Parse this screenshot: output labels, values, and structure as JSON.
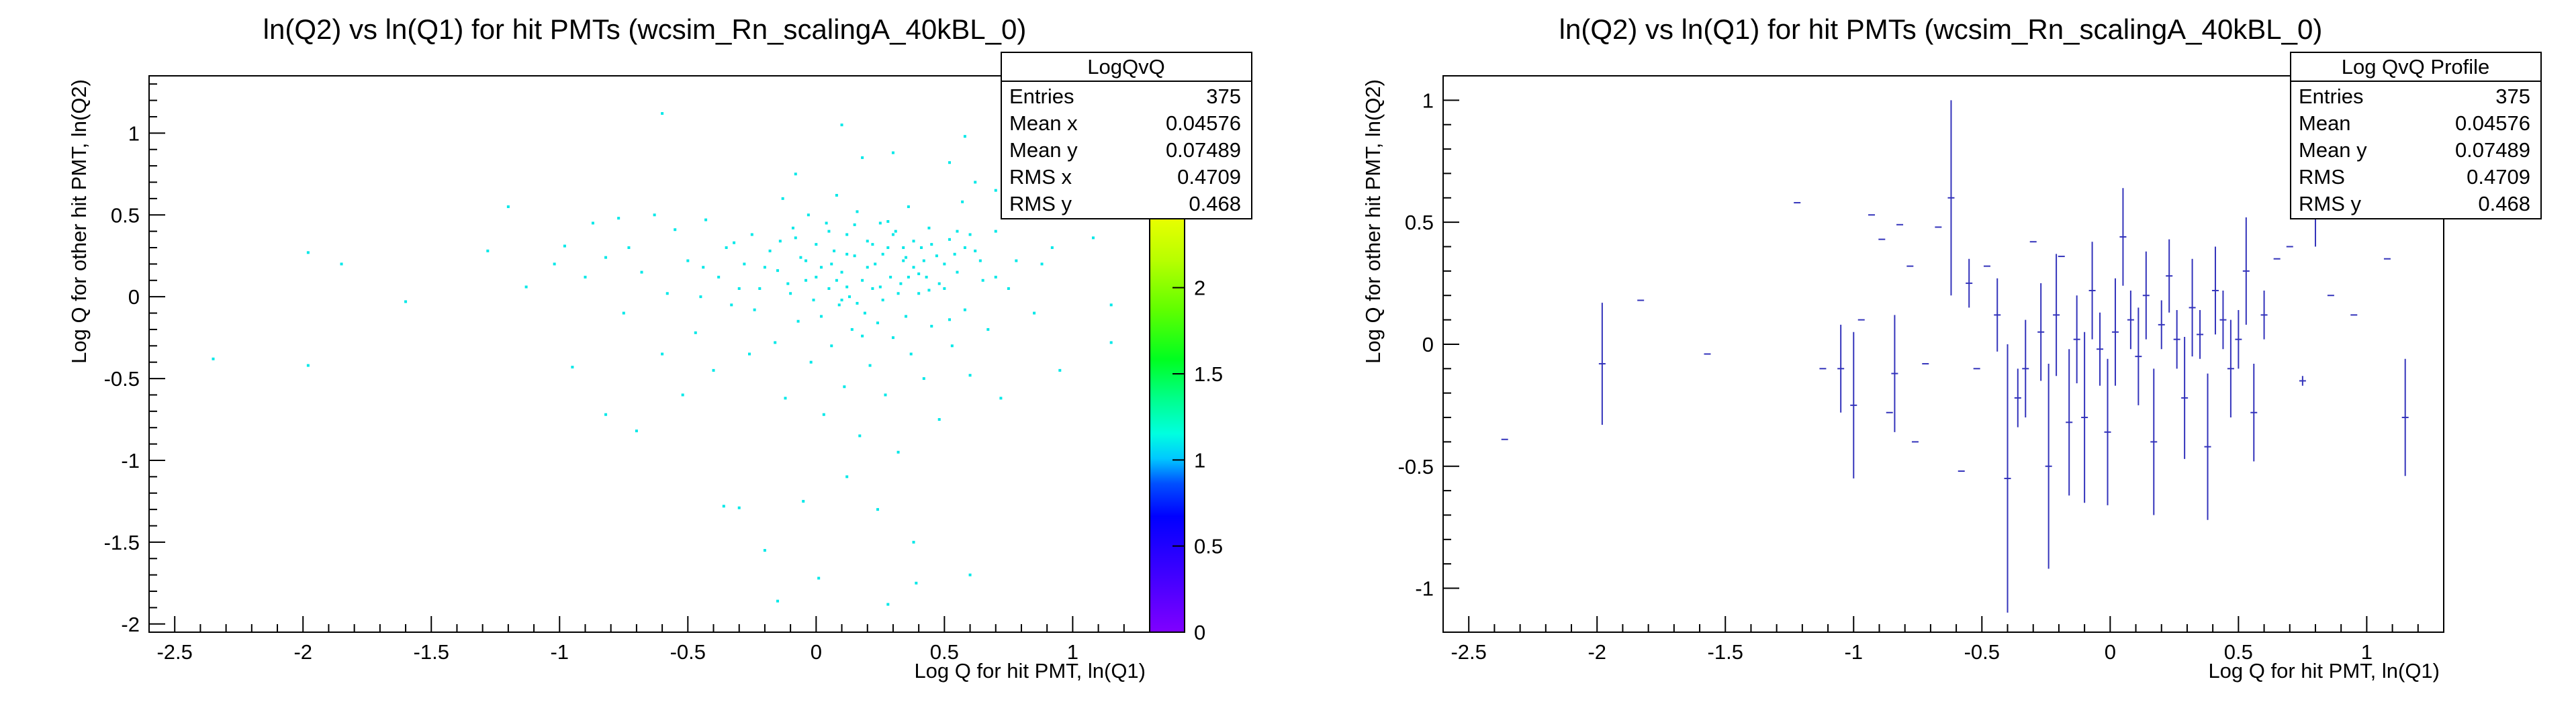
{
  "colors": {
    "scatter_point": "#00e8e8",
    "profile": "#3333bb"
  },
  "chart_data": [
    {
      "type": "scatter",
      "title": "ln(Q2) vs ln(Q1) for hit PMTs (wcsim_Rn_scalingA_40kBL_0)",
      "xlabel": "Log Q for hit PMT, ln(Q1)",
      "ylabel": "Log Q for other hit PMT, ln(Q2)",
      "xlim": [
        -2.6,
        1.3
      ],
      "ylim": [
        -2.05,
        1.35
      ],
      "xticks": [
        "-2.5",
        "-2",
        "-1.5",
        "-1",
        "-0.5",
        "0",
        "0.5",
        "1"
      ],
      "yticks": [
        "-2",
        "-1.5",
        "-1",
        "-0.5",
        "0",
        "0.5",
        "1"
      ],
      "zlim": [
        0,
        2.4
      ],
      "zticks": [
        "0",
        "0.5",
        "1",
        "1.5",
        "2"
      ],
      "stats": {
        "title": "LogQvQ",
        "rows": [
          {
            "label": "Entries",
            "value": "375"
          },
          {
            "label": "Mean x",
            "value": "0.04576"
          },
          {
            "label": "Mean y",
            "value": "0.07489"
          },
          {
            "label": "RMS x",
            "value": "0.4709"
          },
          {
            "label": "RMS y",
            "value": "0.468"
          }
        ]
      },
      "points": [
        [
          -2.35,
          -0.38
        ],
        [
          -1.98,
          0.27
        ],
        [
          -1.98,
          -0.42
        ],
        [
          -1.85,
          0.2
        ],
        [
          -1.6,
          -0.03
        ],
        [
          -1.28,
          0.28
        ],
        [
          -1.2,
          0.55
        ],
        [
          -1.13,
          0.06
        ],
        [
          -1.02,
          0.2
        ],
        [
          -0.98,
          0.31
        ],
        [
          -0.95,
          -0.43
        ],
        [
          -0.9,
          0.12
        ],
        [
          -0.87,
          0.45
        ],
        [
          -0.82,
          0.24
        ],
        [
          -0.82,
          -0.72
        ],
        [
          -0.77,
          0.48
        ],
        [
          -0.75,
          -0.1
        ],
        [
          -0.73,
          0.3
        ],
        [
          -0.7,
          -0.82
        ],
        [
          -0.68,
          0.15
        ],
        [
          -0.63,
          0.5
        ],
        [
          -0.6,
          -0.35
        ],
        [
          -0.58,
          0.02
        ],
        [
          -0.55,
          0.41
        ],
        [
          -0.52,
          -0.6
        ],
        [
          -0.5,
          0.22
        ],
        [
          -0.47,
          -0.22
        ],
        [
          -0.45,
          0.0
        ],
        [
          -0.43,
          0.47
        ],
        [
          -0.4,
          -0.45
        ],
        [
          -0.38,
          0.12
        ],
        [
          -0.36,
          -1.28
        ],
        [
          -0.33,
          -0.05
        ],
        [
          -0.32,
          0.33
        ],
        [
          -0.3,
          -1.29
        ],
        [
          -0.28,
          0.2
        ],
        [
          -0.25,
          0.38
        ],
        [
          -0.24,
          -0.08
        ],
        [
          -0.22,
          0.05
        ],
        [
          -0.2,
          -1.55
        ],
        [
          -0.18,
          0.28
        ],
        [
          -0.16,
          -0.28
        ],
        [
          -0.15,
          0.16
        ],
        [
          -0.13,
          0.6
        ],
        [
          -0.12,
          -0.62
        ],
        [
          -0.1,
          0.02
        ],
        [
          -0.09,
          0.42
        ],
        [
          -0.07,
          -0.15
        ],
        [
          -0.06,
          0.24
        ],
        [
          -0.05,
          -1.25
        ],
        [
          -0.04,
          0.1
        ],
        [
          -0.03,
          0.5
        ],
        [
          -0.02,
          -0.4
        ],
        [
          -0.01,
          -0.02
        ],
        [
          0.0,
          0.32
        ],
        [
          0.01,
          -1.72
        ],
        [
          0.02,
          0.18
        ],
        [
          0.03,
          -0.72
        ],
        [
          0.04,
          0.45
        ],
        [
          0.05,
          0.05
        ],
        [
          0.06,
          -0.3
        ],
        [
          0.07,
          0.28
        ],
        [
          0.08,
          0.62
        ],
        [
          0.09,
          -0.05
        ],
        [
          0.1,
          0.15
        ],
        [
          0.11,
          -0.55
        ],
        [
          0.12,
          0.38
        ],
        [
          0.13,
          0.0
        ],
        [
          0.14,
          -0.2
        ],
        [
          0.15,
          0.25
        ],
        [
          0.16,
          0.52
        ],
        [
          0.17,
          -0.85
        ],
        [
          0.18,
          0.1
        ],
        [
          0.19,
          -0.1
        ],
        [
          0.2,
          0.34
        ],
        [
          0.21,
          -0.42
        ],
        [
          0.22,
          0.05
        ],
        [
          0.23,
          0.2
        ],
        [
          0.24,
          -1.3
        ],
        [
          0.25,
          0.45
        ],
        [
          0.26,
          -0.02
        ],
        [
          0.27,
          -0.6
        ],
        [
          0.28,
          0.3
        ],
        [
          0.29,
          0.12
        ],
        [
          0.3,
          -0.25
        ],
        [
          0.31,
          0.4
        ],
        [
          0.32,
          -0.95
        ],
        [
          0.33,
          0.08
        ],
        [
          0.34,
          0.22
        ],
        [
          0.35,
          -0.12
        ],
        [
          0.36,
          0.55
        ],
        [
          0.37,
          -0.35
        ],
        [
          0.38,
          0.18
        ],
        [
          0.39,
          -1.75
        ],
        [
          0.4,
          0.02
        ],
        [
          0.41,
          0.3
        ],
        [
          0.42,
          -0.5
        ],
        [
          0.43,
          0.12
        ],
        [
          0.44,
          0.42
        ],
        [
          0.45,
          -0.18
        ],
        [
          0.47,
          0.25
        ],
        [
          0.48,
          -0.75
        ],
        [
          0.5,
          0.05
        ],
        [
          0.52,
          0.35
        ],
        [
          0.53,
          -0.3
        ],
        [
          0.55,
          0.15
        ],
        [
          0.57,
          0.58
        ],
        [
          0.58,
          -0.08
        ],
        [
          0.6,
          -0.48
        ],
        [
          0.62,
          0.28
        ],
        [
          0.65,
          0.1
        ],
        [
          0.67,
          -0.2
        ],
        [
          0.7,
          0.4
        ],
        [
          0.72,
          -0.62
        ],
        [
          0.75,
          0.05
        ],
        [
          0.78,
          0.22
        ],
        [
          0.82,
          0.48
        ],
        [
          0.85,
          -0.1
        ],
        [
          0.88,
          0.2
        ],
        [
          0.92,
          0.3
        ],
        [
          0.95,
          -0.45
        ],
        [
          1.0,
          0.55
        ],
        [
          1.08,
          0.36
        ],
        [
          1.15,
          -0.05
        ],
        [
          1.15,
          -0.28
        ],
        [
          -0.14,
          0.34
        ],
        [
          -0.11,
          0.08
        ],
        [
          -0.08,
          0.36
        ],
        [
          0.0,
          0.12
        ],
        [
          0.05,
          0.4
        ],
        [
          0.1,
          -0.02
        ],
        [
          0.15,
          0.44
        ],
        [
          0.2,
          0.18
        ],
        [
          0.25,
          0.06
        ],
        [
          0.3,
          0.38
        ],
        [
          0.35,
          0.24
        ],
        [
          0.4,
          0.14
        ],
        [
          0.45,
          0.32
        ],
        [
          0.5,
          0.2
        ],
        [
          0.55,
          0.4
        ],
        [
          0.12,
          0.26
        ],
        [
          0.22,
          0.32
        ],
        [
          0.32,
          0.02
        ],
        [
          0.42,
          0.22
        ],
        [
          0.52,
          -0.14
        ],
        [
          0.6,
          0.38
        ],
        [
          0.18,
          -0.24
        ],
        [
          0.28,
          0.46
        ],
        [
          0.38,
          0.34
        ],
        [
          0.08,
          0.1
        ],
        [
          -0.2,
          0.18
        ],
        [
          -0.3,
          0.05
        ],
        [
          -0.26,
          -0.35
        ],
        [
          0.64,
          0.22
        ],
        [
          0.7,
          0.12
        ],
        [
          0.58,
          0.3
        ],
        [
          0.48,
          0.08
        ],
        [
          0.36,
          0.12
        ],
        [
          0.26,
          0.26
        ],
        [
          0.16,
          -0.04
        ],
        [
          0.06,
          0.2
        ],
        [
          -0.04,
          0.22
        ],
        [
          0.02,
          -0.12
        ],
        [
          0.12,
          0.06
        ],
        [
          0.24,
          -0.16
        ],
        [
          0.34,
          0.3
        ],
        [
          0.44,
          0.04
        ],
        [
          0.54,
          0.26
        ],
        [
          -0.35,
          0.3
        ],
        [
          -0.44,
          0.18
        ],
        [
          0.28,
          -1.88
        ],
        [
          -0.15,
          -1.86
        ],
        [
          0.6,
          -1.7
        ],
        [
          0.38,
          -1.5
        ],
        [
          0.12,
          -1.1
        ],
        [
          0.52,
          0.82
        ],
        [
          0.58,
          0.98
        ],
        [
          -0.08,
          0.75
        ],
        [
          0.3,
          0.88
        ],
        [
          0.88,
          0.78
        ],
        [
          -0.6,
          1.12
        ],
        [
          0.1,
          1.05
        ],
        [
          0.18,
          0.85
        ],
        [
          0.62,
          0.7
        ],
        [
          0.7,
          0.65
        ]
      ]
    },
    {
      "type": "scatter",
      "title": "ln(Q2) vs ln(Q1) for hit PMTs (wcsim_Rn_scalingA_40kBL_0)",
      "xlabel": "Log Q for hit PMT, ln(Q1)",
      "ylabel": "Log Q for other hit PMT, ln(Q2)",
      "xlim": [
        -2.6,
        1.3
      ],
      "ylim": [
        -1.18,
        1.1
      ],
      "xticks": [
        "-2.5",
        "-2",
        "-1.5",
        "-1",
        "-0.5",
        "0",
        "0.5",
        "1"
      ],
      "yticks": [
        "-1",
        "-0.5",
        "0",
        "0.5",
        "1"
      ],
      "stats": {
        "title": "Log QvQ Profile",
        "rows": [
          {
            "label": "Entries",
            "value": "375"
          },
          {
            "label": "Mean",
            "value": "0.04576"
          },
          {
            "label": "Mean y",
            "value": "0.07489"
          },
          {
            "label": "RMS",
            "value": "0.4709"
          },
          {
            "label": "RMS y",
            "value": "0.468"
          }
        ]
      },
      "profile": [
        {
          "x": -2.36,
          "y": -0.39,
          "err": 0
        },
        {
          "x": -1.98,
          "y": -0.08,
          "err": 0.25
        },
        {
          "x": -1.83,
          "y": 0.18,
          "err": 0
        },
        {
          "x": -1.57,
          "y": -0.04,
          "err": 0
        },
        {
          "x": -1.22,
          "y": 0.58,
          "err": 0
        },
        {
          "x": -1.12,
          "y": -0.1,
          "err": 0
        },
        {
          "x": -1.05,
          "y": -0.1,
          "err": 0.18
        },
        {
          "x": -1.0,
          "y": -0.25,
          "err": 0.3
        },
        {
          "x": -0.97,
          "y": 0.1,
          "err": 0
        },
        {
          "x": -0.93,
          "y": 0.53,
          "err": 0
        },
        {
          "x": -0.89,
          "y": 0.43,
          "err": 0
        },
        {
          "x": -0.86,
          "y": -0.28,
          "err": 0
        },
        {
          "x": -0.84,
          "y": -0.12,
          "err": 0.24
        },
        {
          "x": -0.82,
          "y": 0.49,
          "err": 0
        },
        {
          "x": -0.78,
          "y": 0.32,
          "err": 0
        },
        {
          "x": -0.76,
          "y": -0.4,
          "err": 0
        },
        {
          "x": -0.72,
          "y": -0.08,
          "err": 0
        },
        {
          "x": -0.67,
          "y": 0.48,
          "err": 0
        },
        {
          "x": -0.62,
          "y": 0.6,
          "err": 0.4
        },
        {
          "x": -0.58,
          "y": -0.52,
          "err": 0
        },
        {
          "x": -0.55,
          "y": 0.25,
          "err": 0.1
        },
        {
          "x": -0.52,
          "y": -0.1,
          "err": 0
        },
        {
          "x": -0.48,
          "y": 0.32,
          "err": 0
        },
        {
          "x": -0.44,
          "y": 0.12,
          "err": 0.15
        },
        {
          "x": -0.4,
          "y": -0.55,
          "err": 0.55
        },
        {
          "x": -0.36,
          "y": -0.22,
          "err": 0.12
        },
        {
          "x": -0.33,
          "y": -0.1,
          "err": 0.2
        },
        {
          "x": -0.3,
          "y": 0.42,
          "err": 0
        },
        {
          "x": -0.27,
          "y": 0.05,
          "err": 0.2
        },
        {
          "x": -0.24,
          "y": -0.5,
          "err": 0.42
        },
        {
          "x": -0.21,
          "y": 0.12,
          "err": 0.25
        },
        {
          "x": -0.19,
          "y": 0.36,
          "err": 0
        },
        {
          "x": -0.16,
          "y": -0.32,
          "err": 0.3
        },
        {
          "x": -0.13,
          "y": 0.02,
          "err": 0.18
        },
        {
          "x": -0.1,
          "y": -0.3,
          "err": 0.35
        },
        {
          "x": -0.07,
          "y": 0.22,
          "err": 0.2
        },
        {
          "x": -0.04,
          "y": -0.02,
          "err": 0.15
        },
        {
          "x": -0.01,
          "y": -0.36,
          "err": 0.3
        },
        {
          "x": 0.02,
          "y": 0.05,
          "err": 0.22
        },
        {
          "x": 0.05,
          "y": 0.44,
          "err": 0.2
        },
        {
          "x": 0.08,
          "y": 0.1,
          "err": 0.12
        },
        {
          "x": 0.11,
          "y": -0.05,
          "err": 0.2
        },
        {
          "x": 0.14,
          "y": 0.2,
          "err": 0.18
        },
        {
          "x": 0.17,
          "y": -0.4,
          "err": 0.3
        },
        {
          "x": 0.2,
          "y": 0.08,
          "err": 0.1
        },
        {
          "x": 0.23,
          "y": 0.28,
          "err": 0.15
        },
        {
          "x": 0.26,
          "y": 0.02,
          "err": 0.12
        },
        {
          "x": 0.29,
          "y": -0.22,
          "err": 0.25
        },
        {
          "x": 0.32,
          "y": 0.15,
          "err": 0.2
        },
        {
          "x": 0.35,
          "y": 0.04,
          "err": 0.1
        },
        {
          "x": 0.38,
          "y": -0.42,
          "err": 0.3
        },
        {
          "x": 0.41,
          "y": 0.22,
          "err": 0.18
        },
        {
          "x": 0.44,
          "y": 0.1,
          "err": 0.12
        },
        {
          "x": 0.47,
          "y": -0.1,
          "err": 0.2
        },
        {
          "x": 0.5,
          "y": 0.02,
          "err": 0.12
        },
        {
          "x": 0.53,
          "y": 0.3,
          "err": 0.22
        },
        {
          "x": 0.56,
          "y": -0.28,
          "err": 0.2
        },
        {
          "x": 0.6,
          "y": 0.12,
          "err": 0.1
        },
        {
          "x": 0.65,
          "y": 0.35,
          "err": 0
        },
        {
          "x": 0.7,
          "y": 0.4,
          "err": 0
        },
        {
          "x": 0.75,
          "y": -0.15,
          "err": 0.02
        },
        {
          "x": 0.8,
          "y": 0.55,
          "err": 0.15
        },
        {
          "x": 0.86,
          "y": 0.2,
          "err": 0
        },
        {
          "x": 0.95,
          "y": 0.12,
          "err": 0
        },
        {
          "x": 1.08,
          "y": 0.35,
          "err": 0
        },
        {
          "x": 1.15,
          "y": -0.3,
          "err": 0.24
        }
      ]
    }
  ]
}
